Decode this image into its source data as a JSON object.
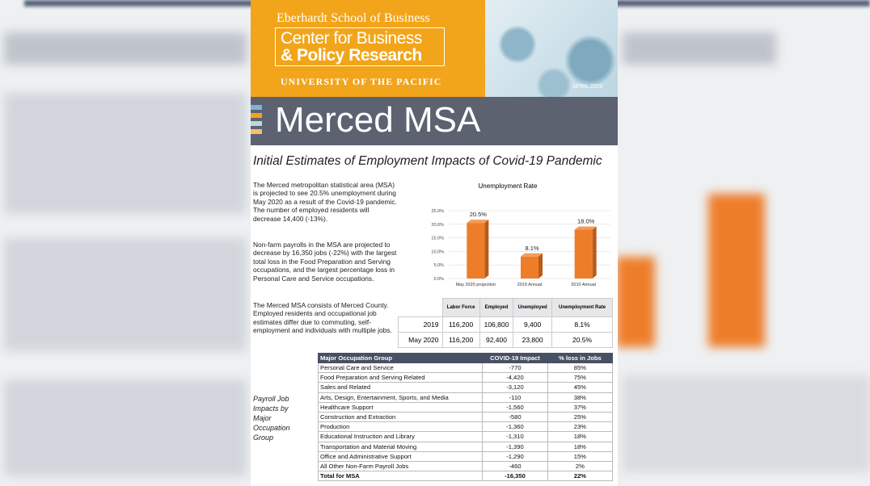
{
  "header": {
    "school": "Eberhardt School of Business",
    "center_line1": "Center for Business",
    "center_line2": "& Policy Research",
    "university": "UNIVERSITY OF THE PACIFIC",
    "date": "APRIL 2020"
  },
  "banner_title": "Merced MSA",
  "subtitle": "Initial Estimates of Employment Impacts of Covid-19 Pandemic",
  "paragraphs": [
    "The Merced metropolitan statistical area (MSA) is projected to see 20.5% unemployment during May 2020 as a result of the Covid-19 pandemic. The number of employed residents will decrease 14,400 (-13%).",
    "Non-farm payrolls in the MSA are projected to decrease by 16,350 jobs (-22%) with the largest total loss in the Food Preparation and Serving occupations, and the largest percentage loss in Personal Care and Service occupations.",
    "The Merced MSA consists of Merced County. Employed residents and occupational job estimates differ due to commuting, self-employment and individuals with multiple jobs."
  ],
  "chart": {
    "type": "bar",
    "title": "Unemployment Rate",
    "categories": [
      "May 2020 projection",
      "2019 Annual",
      "2010 Annual"
    ],
    "values": [
      20.5,
      8.1,
      18.0
    ],
    "value_labels": [
      "20.5%",
      "8.1%",
      "18.0%"
    ],
    "color": "#ee7d2a",
    "ylim": [
      0,
      25
    ],
    "yticks": [
      {
        "value": 0,
        "label": "0.0%"
      },
      {
        "value": 5,
        "label": "5.0%"
      },
      {
        "value": 10,
        "label": "10.0%"
      },
      {
        "value": 15,
        "label": "15.0%"
      },
      {
        "value": 20,
        "label": "20.0%"
      },
      {
        "value": 25,
        "label": "25.0%"
      }
    ]
  },
  "summary_table": {
    "headers": [
      "Labor Force",
      "Employed",
      "Unemployed",
      "Unemployment Rate"
    ],
    "rows": [
      [
        "2019",
        "116,200",
        "106,800",
        "9,400",
        "8.1%"
      ],
      [
        "May 2020",
        "116,200",
        "92,400",
        "23,800",
        "20.5%"
      ]
    ]
  },
  "side_label": "Payroll Job Impacts by Major Occupation Group",
  "table": {
    "headers": [
      "Major Occupation Group",
      "COVID-19 Impact",
      "% loss in Jobs"
    ],
    "rows": [
      [
        "Personal Care and Service",
        "-770",
        "85%"
      ],
      [
        "Food Preparation and Serving Related",
        "-4,420",
        "75%"
      ],
      [
        "Sales and Related",
        "-3,120",
        "45%"
      ],
      [
        "Arts, Design, Entertainment, Sports, and Media",
        "-110",
        "38%"
      ],
      [
        "Healthcare Support",
        "-1,560",
        "37%"
      ],
      [
        "Construction and Extraction",
        "-580",
        "25%"
      ],
      [
        "Production",
        "-1,360",
        "23%"
      ],
      [
        "Educational Instruction and Library",
        "-1,310",
        "18%"
      ],
      [
        "Transportation and Material Moving",
        "-1,390",
        "18%"
      ],
      [
        "Office and Administrative Support",
        "-1,290",
        "15%"
      ],
      [
        "All Other Non-Farm Payroll Jobs",
        "-460",
        "2%"
      ]
    ],
    "total": [
      "Total for MSA",
      "-16,350",
      "22%"
    ]
  }
}
